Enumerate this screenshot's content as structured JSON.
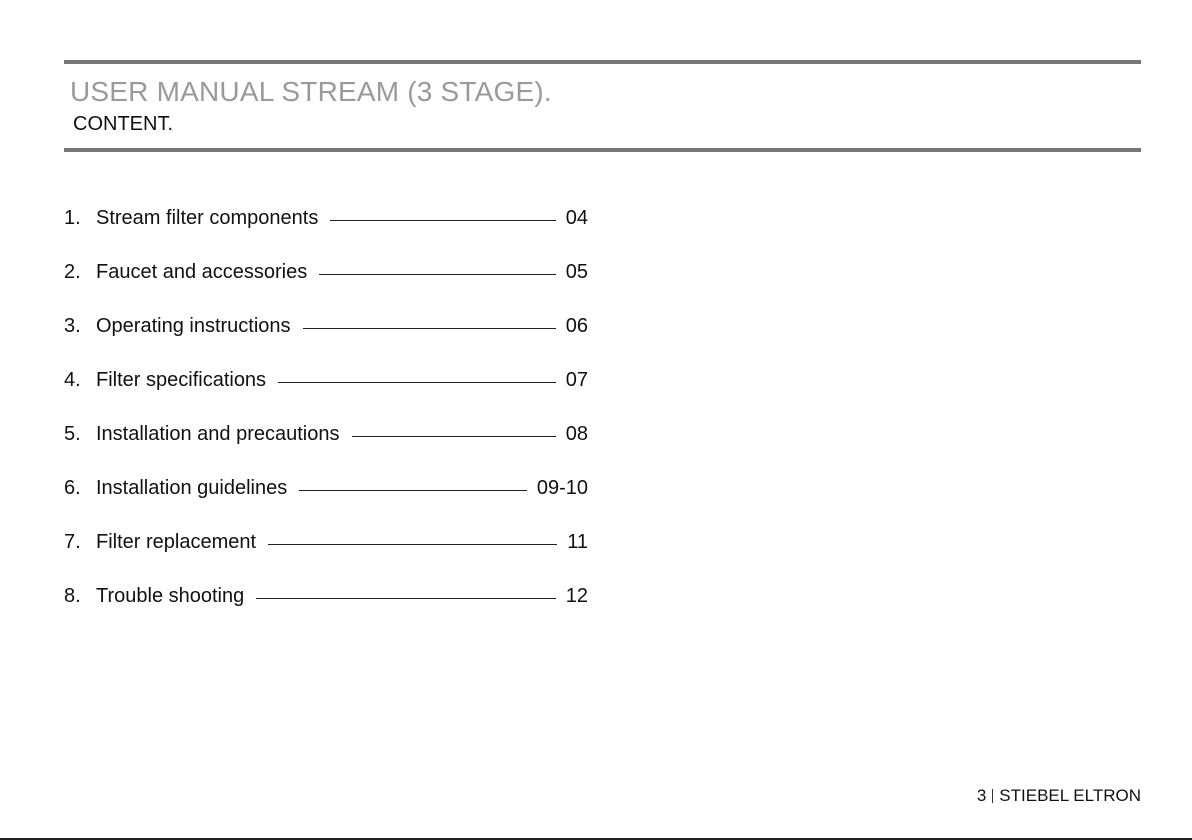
{
  "header": {
    "title": "USER MANUAL STREAM (3 STAGE).",
    "subtitle": "CONTENT."
  },
  "toc": [
    {
      "number": "1.",
      "title": "Stream filter components",
      "page": "04"
    },
    {
      "number": "2.",
      "title": "Faucet and accessories",
      "page": "05"
    },
    {
      "number": "3.",
      "title": "Operating instructions",
      "page": "06"
    },
    {
      "number": "4.",
      "title": "Filter specifications",
      "page": "07"
    },
    {
      "number": "5.",
      "title": "Installation and precautions",
      "page": "08"
    },
    {
      "number": "6.",
      "title": "Installation guidelines",
      "page": "09-10"
    },
    {
      "number": "7.",
      "title": "Filter replacement",
      "page": "11"
    },
    {
      "number": "8.",
      "title": "Trouble shooting",
      "page": "12"
    }
  ],
  "footer": {
    "page_number": "3",
    "brand": "STIEBEL ELTRON"
  }
}
